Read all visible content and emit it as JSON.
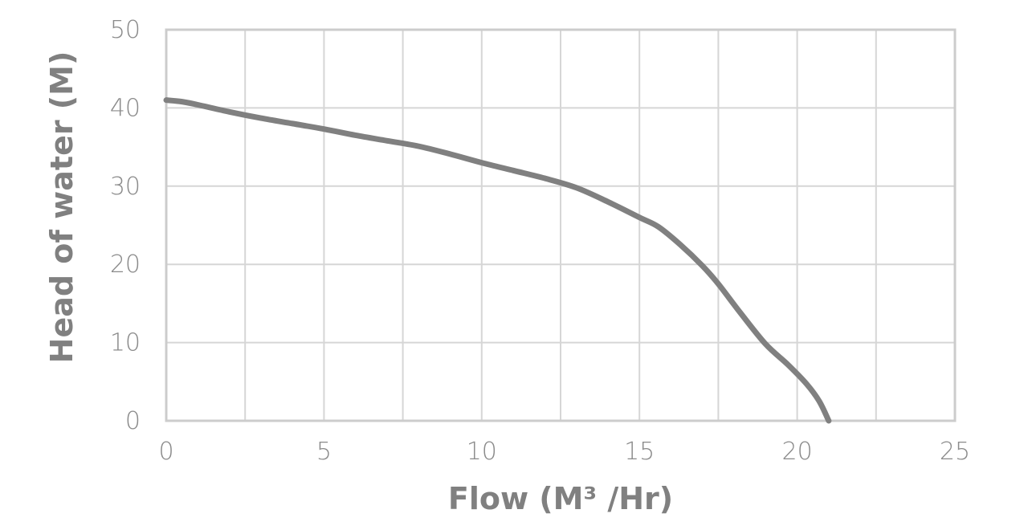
{
  "chart_data": {
    "type": "line",
    "xlabel": "Flow (M³ /Hr)",
    "ylabel": "Head of water (M)",
    "xlim": [
      0,
      25
    ],
    "ylim": [
      0,
      50
    ],
    "x_ticks": [
      0,
      5,
      10,
      15,
      20,
      25
    ],
    "y_ticks": [
      0,
      10,
      20,
      30,
      40,
      50
    ],
    "grid": true,
    "series": [
      {
        "color": "#808080",
        "x": [
          0,
          0.5,
          1,
          2,
          3,
          4,
          5,
          6,
          7,
          8,
          9,
          10,
          11,
          12,
          13,
          14,
          15,
          15.6,
          16.3,
          17,
          17.5,
          18.2,
          19,
          19.7,
          20.3,
          20.7,
          21
        ],
        "y": [
          41,
          40.8,
          40.4,
          39.5,
          38.7,
          38,
          37.3,
          36.5,
          35.8,
          35.1,
          34.1,
          33,
          32,
          31,
          29.8,
          28,
          26,
          24.8,
          22.5,
          19.8,
          17.5,
          13.8,
          9.8,
          7.2,
          4.7,
          2.5,
          0
        ]
      }
    ]
  }
}
